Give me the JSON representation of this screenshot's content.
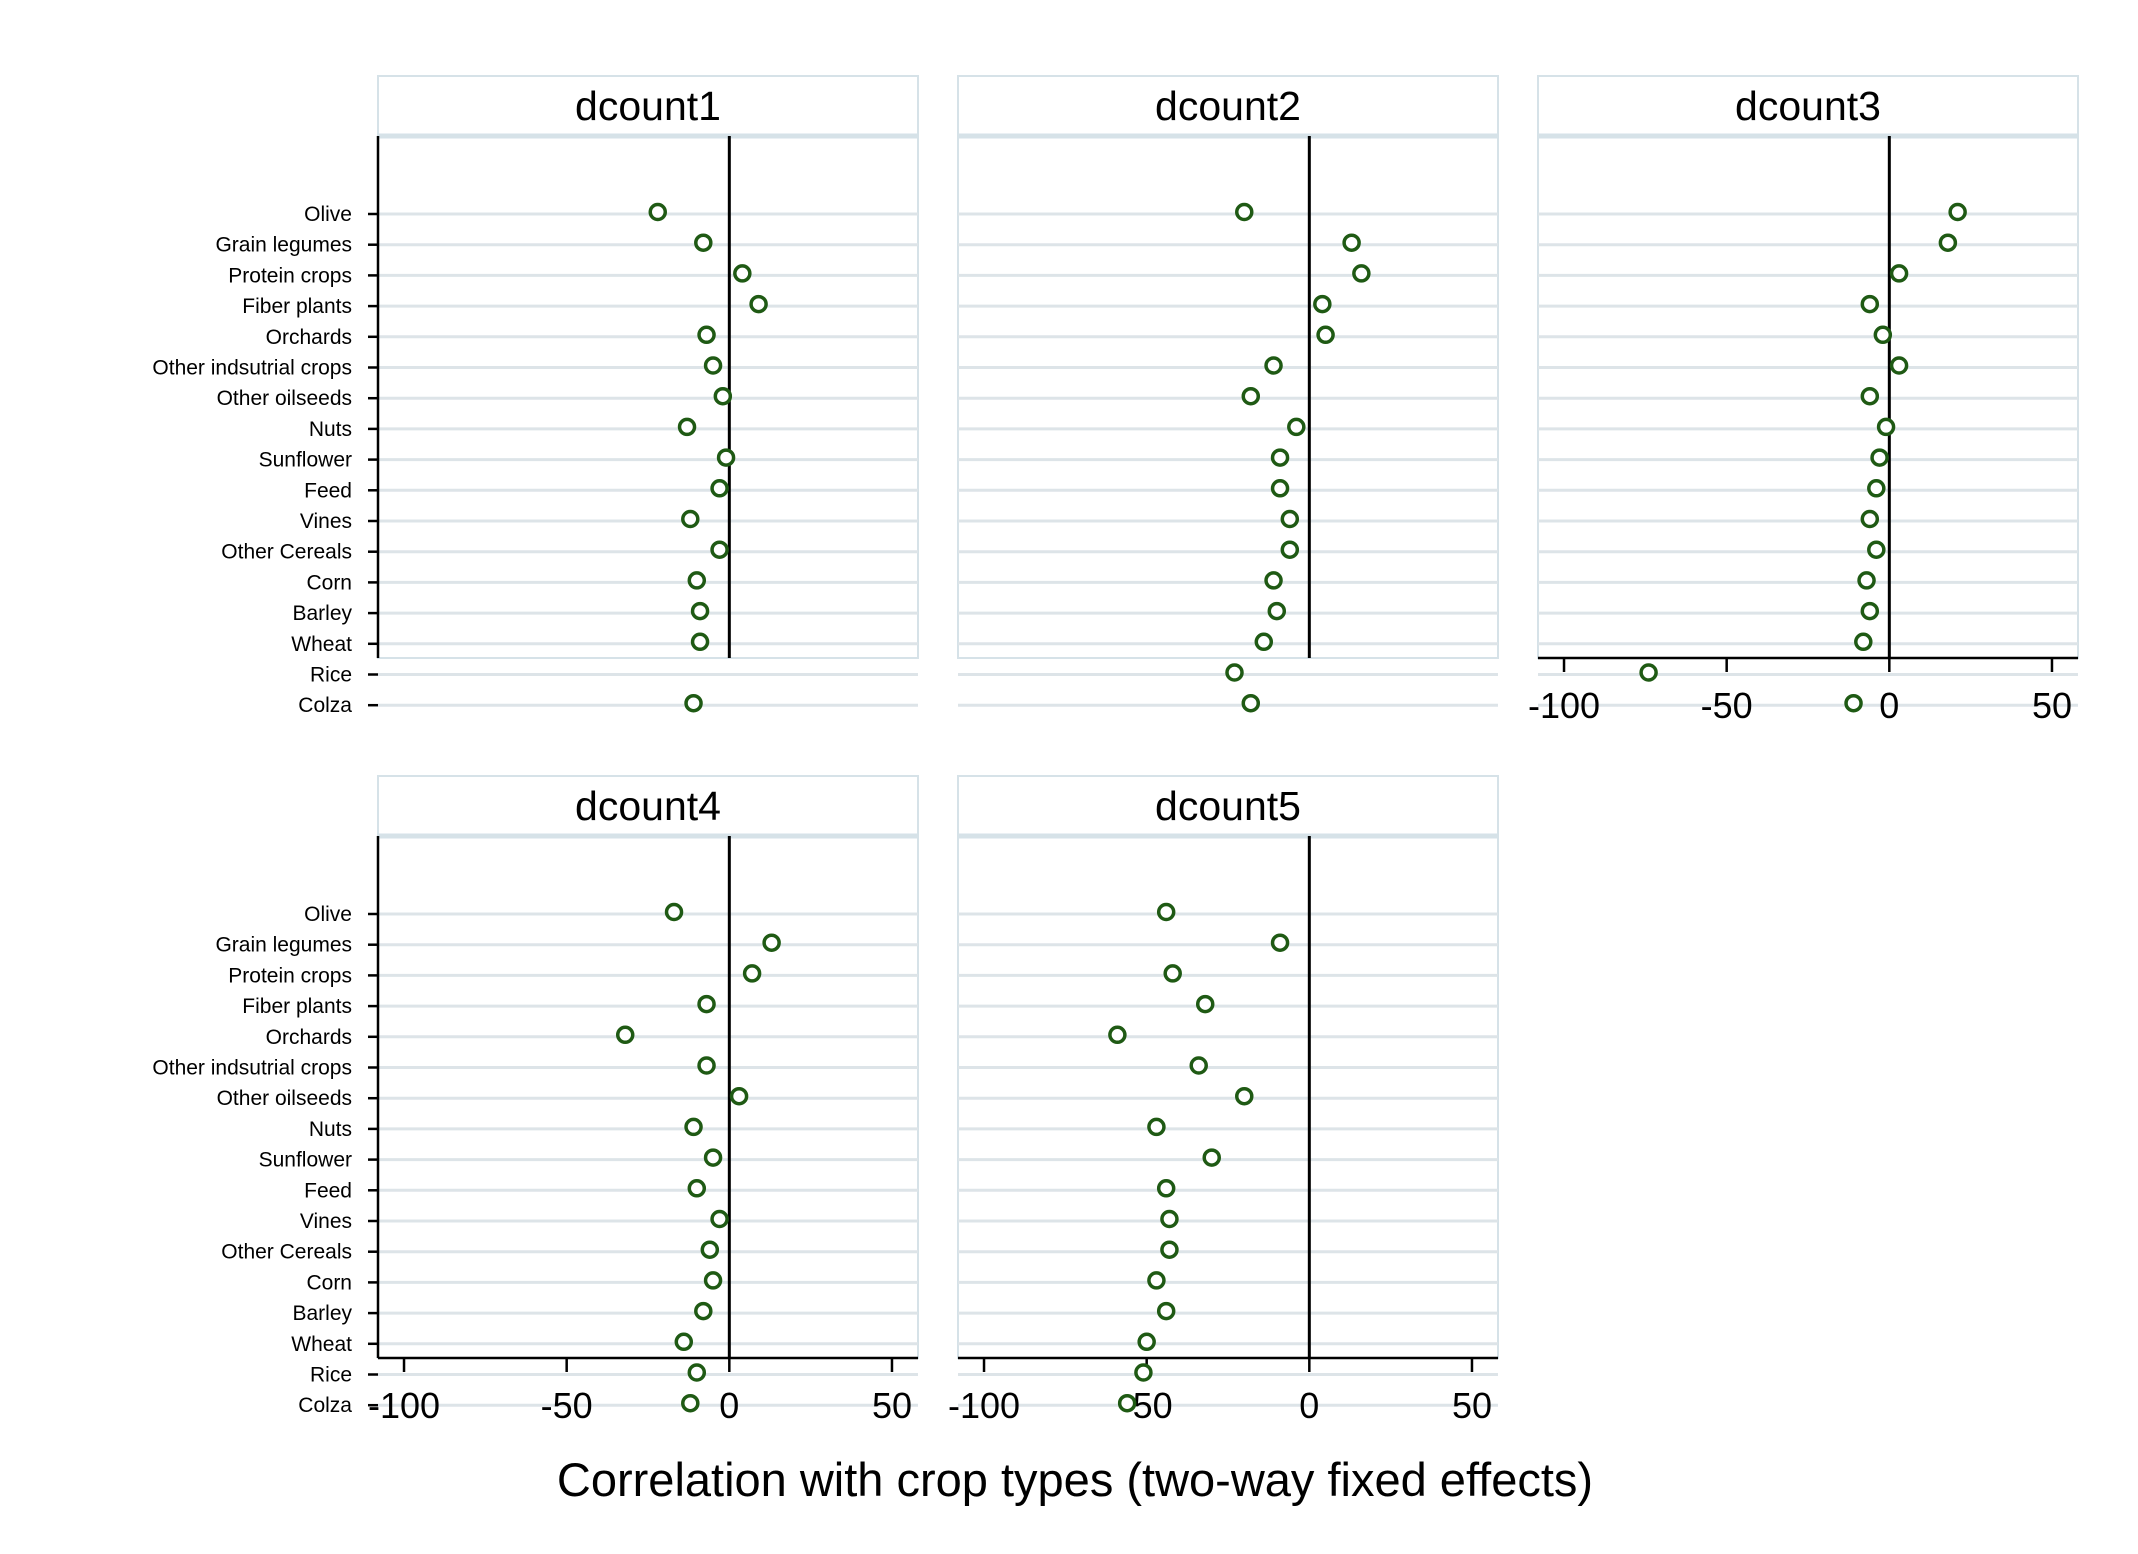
{
  "chart_data": {
    "type": "scatter",
    "layout": "small-multiples dot plot (2 rows x 3 columns, 5 panels)",
    "xlabel": "Correlation with crop types (two-way fixed effects)",
    "xlim": [
      -108,
      58
    ],
    "xticks": [
      -100,
      -50,
      0,
      50
    ],
    "xtick_labels": [
      "-100",
      "-50",
      "0",
      "50"
    ],
    "categories": [
      "Olive",
      "Grain legumes",
      "Protein crops",
      "Fiber plants",
      "Orchards",
      "Other indsutrial crops",
      "Other oilseeds",
      "Nuts",
      "Sunflower",
      "Feed",
      "Vines",
      "Other Cereals",
      "Corn",
      "Barley",
      "Wheat",
      "Rice",
      "Colza"
    ],
    "reference_line": 0,
    "marker_color": "#1f5a14",
    "grid": true,
    "panels": [
      {
        "title": "dcount1",
        "values": [
          -22,
          -8,
          4,
          9,
          -7,
          -5,
          -2,
          -13,
          -1,
          -3,
          -12,
          -3,
          -10,
          -9,
          -9,
          null,
          -11
        ],
        "show_x_axis": false,
        "show_y_labels": true
      },
      {
        "title": "dcount2",
        "values": [
          -20,
          13,
          16,
          4,
          5,
          -11,
          -18,
          -4,
          -9,
          -9,
          -6,
          -6,
          -11,
          -10,
          -14,
          -23,
          -18
        ],
        "show_x_axis": false,
        "show_y_labels": false
      },
      {
        "title": "dcount3",
        "values": [
          21,
          18,
          3,
          -6,
          -2,
          3,
          -6,
          -1,
          -3,
          -4,
          -6,
          -4,
          -7,
          -6,
          -8,
          -74,
          -11
        ],
        "show_x_axis": true,
        "show_y_labels": false
      },
      {
        "title": "dcount4",
        "values": [
          -17,
          13,
          7,
          -7,
          -32,
          -7,
          3,
          -11,
          -5,
          -10,
          -3,
          -6,
          -5,
          -8,
          -14,
          -10,
          -12
        ],
        "show_x_axis": true,
        "show_y_labels": true
      },
      {
        "title": "dcount5",
        "values": [
          -44,
          -9,
          -42,
          -32,
          -59,
          -34,
          -20,
          -47,
          -30,
          -44,
          -43,
          -43,
          -47,
          -44,
          -50,
          -51,
          -56
        ],
        "show_x_axis": true,
        "show_y_labels": false
      }
    ]
  }
}
